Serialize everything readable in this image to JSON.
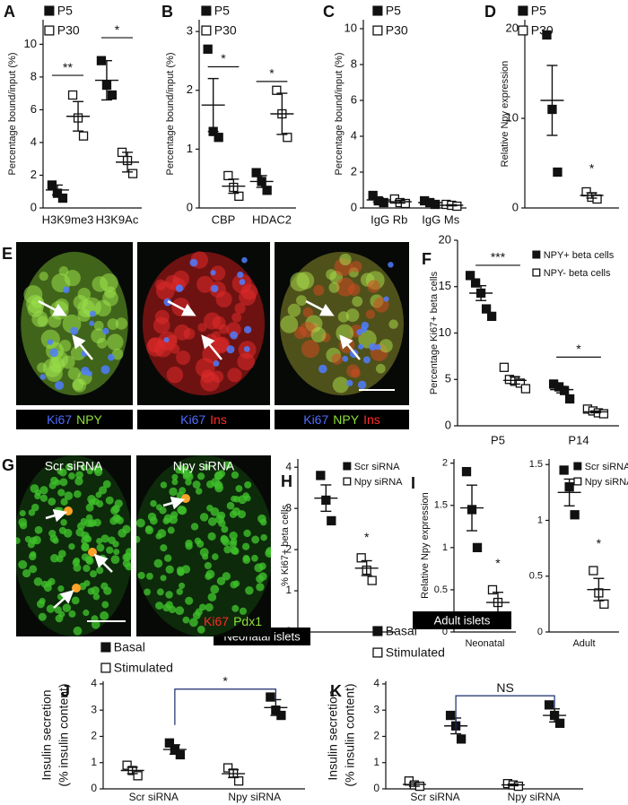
{
  "chart_data": [
    {
      "type": "dotplot",
      "panel": "A",
      "ylabel": "Percentage bound/input (%)",
      "ylim": [
        0,
        11.5
      ],
      "yticks": [
        0,
        2,
        4,
        6,
        8,
        10
      ],
      "categories": [
        "H3K9me3",
        "H3K9Ac"
      ],
      "bracket": "line",
      "series": [
        {
          "name": "P5",
          "marker": "filled",
          "values": [
            [
              1.4,
              0.9,
              0.6
            ],
            [
              9.0,
              7.5,
              6.9
            ]
          ],
          "mean": [
            1.1,
            7.8
          ],
          "sem": [
            0.3,
            1.2
          ]
        },
        {
          "name": "P30",
          "marker": "open",
          "values": [
            [
              6.9,
              5.5,
              4.4
            ],
            [
              3.4,
              2.9,
              2.1
            ]
          ],
          "mean": [
            5.6,
            2.8
          ],
          "sem": [
            0.9,
            0.6
          ]
        }
      ],
      "annotations": [
        {
          "text": "**",
          "from": [
            0,
            0
          ],
          "to": [
            0,
            1
          ],
          "y": 8.1
        },
        {
          "text": "*",
          "from": [
            1,
            0
          ],
          "to": [
            1,
            1
          ],
          "y": 10.4
        }
      ]
    },
    {
      "type": "dotplot",
      "panel": "B",
      "ylabel": "Percentage bound/input (%)",
      "ylim": [
        0,
        3.2
      ],
      "yticks": [
        0,
        1,
        2,
        3
      ],
      "categories": [
        "CBP",
        "HDAC2"
      ],
      "bracket": "line",
      "series": [
        {
          "name": "P5",
          "marker": "filled",
          "values": [
            [
              2.7,
              1.3,
              1.2
            ],
            [
              0.6,
              0.45,
              0.3
            ]
          ],
          "mean": [
            1.75,
            0.45
          ],
          "sem": [
            0.45,
            0.1
          ]
        },
        {
          "name": "P30",
          "marker": "open",
          "values": [
            [
              0.55,
              0.35,
              0.2
            ],
            [
              2.0,
              1.6,
              1.2
            ]
          ],
          "mean": [
            0.37,
            1.6
          ],
          "sem": [
            0.12,
            0.35
          ]
        }
      ],
      "annotations": [
        {
          "text": "*",
          "from": [
            0,
            0
          ],
          "to": [
            0,
            1
          ],
          "y": 2.4
        },
        {
          "text": "*",
          "from": [
            1,
            0
          ],
          "to": [
            1,
            1
          ],
          "y": 2.15
        }
      ]
    },
    {
      "type": "dotplot",
      "panel": "C",
      "ylabel": "Percentage bound/input (%)",
      "ylim": [
        0,
        10.5
      ],
      "yticks": [
        0,
        2,
        4,
        6,
        8,
        10
      ],
      "categories": [
        "IgG Rb",
        "IgG Ms"
      ],
      "bracket": "line",
      "series": [
        {
          "name": "P5",
          "marker": "filled",
          "values": [
            [
              0.7,
              0.4,
              0.3
            ],
            [
              0.4,
              0.3,
              0.2
            ]
          ],
          "mean": [
            0.45,
            0.3
          ],
          "sem": [
            0.12,
            0.06
          ]
        },
        {
          "name": "P30",
          "marker": "open",
          "values": [
            [
              0.5,
              0.3,
              0.25
            ],
            [
              0.2,
              0.15,
              0.1
            ]
          ],
          "mean": [
            0.35,
            0.15
          ],
          "sem": [
            0.08,
            0.03
          ]
        }
      ],
      "annotations": []
    },
    {
      "type": "dotplot",
      "panel": "D",
      "ylabel": "Relative Npy expression",
      "ylim": [
        0,
        21
      ],
      "yticks": [
        0,
        10,
        20
      ],
      "categories": [
        null
      ],
      "bracket": "line",
      "series": [
        {
          "name": "P5",
          "marker": "filled",
          "values": [
            [
              19.3,
              11.0,
              4.0
            ]
          ],
          "mean": [
            12.0
          ],
          "sem": [
            3.9
          ]
        },
        {
          "name": "P30",
          "marker": "open",
          "values": [
            [
              1.8,
              1.2,
              1.0
            ]
          ],
          "mean": [
            1.4
          ],
          "sem": [
            0.3
          ]
        }
      ],
      "annotations": [
        {
          "text": "*",
          "from": [
            0,
            1
          ],
          "to": [
            0,
            1
          ],
          "y": 3.5
        }
      ]
    },
    {
      "type": "dotplot",
      "panel": "F",
      "ylabel": "Percentage Ki67+ beta cells",
      "ylim": [
        0,
        20
      ],
      "yticks": [
        0,
        5,
        10,
        15,
        20
      ],
      "categories": [
        "P5",
        "P14"
      ],
      "bracket": "line",
      "series": [
        {
          "name": "NPY+ beta cells",
          "marker": "filled",
          "values": [
            [
              16.2,
              15.4,
              14.3,
              12.6,
              11.8
            ],
            [
              4.5,
              4.2,
              3.8,
              2.9
            ]
          ],
          "mean": [
            14.3,
            3.9
          ],
          "sem": [
            0.8,
            0.35
          ]
        },
        {
          "name": "NPY- beta cells",
          "marker": "open",
          "values": [
            [
              6.3,
              5.0,
              4.8,
              4.6,
              4.0
            ],
            [
              1.8,
              1.6,
              1.4,
              1.3
            ]
          ],
          "mean": [
            4.9,
            1.5
          ],
          "sem": [
            0.4,
            0.1
          ]
        }
      ],
      "annotations": [
        {
          "text": "***",
          "from": [
            0,
            0
          ],
          "to": [
            0,
            1
          ],
          "y": 17.3
        },
        {
          "text": "*",
          "from": [
            1,
            0
          ],
          "to": [
            1,
            1
          ],
          "y": 7.4
        }
      ]
    },
    {
      "type": "dotplot",
      "panel": "H",
      "ylabel": "% Ki67+ beta cells",
      "ylim": [
        0,
        4.2
      ],
      "yticks": [
        0,
        1,
        2,
        3,
        4
      ],
      "categories": [
        null
      ],
      "bracket": "line",
      "series": [
        {
          "name": "Scr siRNA",
          "marker": "filled",
          "values": [
            [
              3.8,
              3.2,
              2.7
            ]
          ],
          "mean": [
            3.25
          ],
          "sem": [
            0.32
          ]
        },
        {
          "name": "Npy siRNA",
          "marker": "open",
          "values": [
            [
              1.8,
              1.5,
              1.25
            ]
          ],
          "mean": [
            1.55
          ],
          "sem": [
            0.18
          ]
        }
      ],
      "annotations": [
        {
          "text": "*",
          "from": [
            0,
            1
          ],
          "to": [
            0,
            1
          ],
          "y": 2.1
        }
      ]
    },
    {
      "type": "dotplot",
      "panel": "I",
      "ylabel": "Relative Npy expression",
      "ylim": [
        0,
        2.05
      ],
      "yticks": [
        0,
        0.5,
        1,
        1.5,
        2
      ],
      "categories": [
        "Neonatal"
      ],
      "bracket": "line",
      "series": [
        {
          "name": "Scr siRNA",
          "marker": "filled",
          "values": [
            [
              1.9,
              1.45,
              1.0
            ]
          ],
          "mean": [
            1.47
          ],
          "sem": [
            0.27
          ]
        },
        {
          "name": "Npy siRNA",
          "marker": "open",
          "values": [
            [
              0.5,
              0.35,
              0.15
            ]
          ],
          "mean": [
            0.35
          ],
          "sem": [
            0.12
          ]
        }
      ],
      "annotations": [
        {
          "text": "*",
          "from": [
            0,
            1
          ],
          "to": [
            0,
            1
          ],
          "y": 0.72
        }
      ]
    },
    {
      "type": "dotplot",
      "ylim": [
        0,
        1.55
      ],
      "yticks": [
        0,
        0.5,
        1,
        1.5
      ],
      "categories": [
        "Adult"
      ],
      "bracket": "line",
      "series": [
        {
          "name": "Scr siRNA",
          "marker": "filled",
          "values": [
            [
              1.45,
              1.3,
              1.05
            ]
          ],
          "mean": [
            1.25
          ],
          "sem": [
            0.12
          ]
        },
        {
          "name": "Npy siRNA",
          "marker": "open",
          "values": [
            [
              0.55,
              0.35,
              0.25
            ]
          ],
          "mean": [
            0.38
          ],
          "sem": [
            0.1
          ]
        }
      ],
      "annotations": [
        {
          "text": "*",
          "from": [
            0,
            1
          ],
          "to": [
            0,
            1
          ],
          "y": 0.72
        }
      ]
    },
    {
      "type": "dotplot",
      "panel": "J",
      "title": "Neonatal islets",
      "ylabel": [
        "Insulin secretion",
        "(% insulin content)"
      ],
      "ylim": [
        0,
        4.1
      ],
      "yticks": [
        0,
        1,
        2,
        3,
        4
      ],
      "categories": [
        "Scr siRNA",
        "Npy siRNA"
      ],
      "bracket": "legs",
      "positions_reversed": true,
      "series": [
        {
          "name": "Basal",
          "marker": "filled",
          "values": [
            [
              1.75,
              1.5,
              1.3
            ],
            [
              3.5,
              3.0,
              2.8
            ]
          ],
          "mean": [
            1.5,
            3.1
          ],
          "sem": [
            0.18,
            0.3
          ]
        },
        {
          "name": "Stimulated",
          "marker": "open",
          "values": [
            [
              0.9,
              0.7,
              0.5
            ],
            [
              0.8,
              0.6,
              0.3
            ]
          ],
          "mean": [
            0.7,
            0.58
          ],
          "sem": [
            0.12,
            0.15
          ]
        }
      ],
      "annotations": [
        {
          "text": "*",
          "from": [
            0,
            0
          ],
          "to": [
            1,
            0
          ],
          "y": 3.8
        }
      ]
    },
    {
      "type": "dotplot",
      "panel": "K",
      "title": "Adult islets",
      "ylabel": [
        "Insulin secretion",
        "(% insulin content)"
      ],
      "ylim": [
        0,
        4.1
      ],
      "yticks": [
        0,
        1,
        2,
        3,
        4
      ],
      "categories": [
        "Scr siRNA",
        "Npy siRNA"
      ],
      "bracket": "legs",
      "positions_reversed": true,
      "series": [
        {
          "name": "Basal",
          "marker": "filled",
          "values": [
            [
              2.8,
              2.4,
              1.9
            ],
            [
              3.2,
              2.8,
              2.5
            ]
          ],
          "mean": [
            2.4,
            2.8
          ],
          "sem": [
            0.3,
            0.25
          ]
        },
        {
          "name": "Stimulated",
          "marker": "open",
          "values": [
            [
              0.3,
              0.15,
              0.1
            ],
            [
              0.2,
              0.15,
              0.1
            ]
          ],
          "mean": [
            0.17,
            0.15
          ],
          "sem": [
            0.07,
            0.03
          ]
        }
      ],
      "annotations": [
        {
          "text": "NS",
          "from": [
            0,
            0
          ],
          "to": [
            1,
            0
          ],
          "y": 3.55
        }
      ]
    }
  ],
  "images": {
    "E": {
      "panel": "E",
      "captions": [
        [
          {
            "text": "Ki67",
            "color": "#4f6bff"
          },
          {
            "text": "NPY",
            "color": "#8fe03a"
          }
        ],
        [
          {
            "text": "Ki67",
            "color": "#4f6bff"
          },
          {
            "text": "Ins",
            "color": "#ff2a2a"
          }
        ],
        [
          {
            "text": "Ki67",
            "color": "#4f6bff"
          },
          {
            "text": "NPY",
            "color": "#8fe03a"
          },
          {
            "text": "Ins",
            "color": "#ff2a2a"
          }
        ]
      ]
    },
    "G": {
      "panel": "G",
      "titles": [
        "Scr siRNA",
        "Npy siRNA"
      ],
      "caption": [
        {
          "text": "Ki67",
          "color": "#ff2a2a"
        },
        {
          "text": "Pdx1",
          "color": "#8fe03a"
        }
      ]
    }
  }
}
